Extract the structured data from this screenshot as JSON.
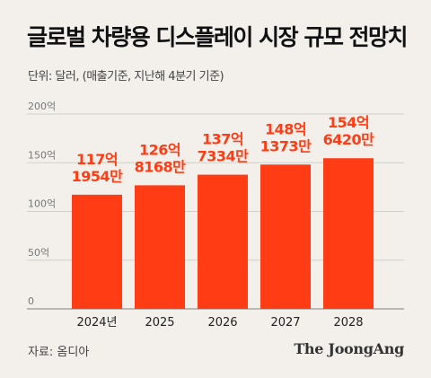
{
  "title": "글로벌 차량용 디스플레이 시장 규모 전망치",
  "unit_note": "단위: 달러, (매출기준, 지난해 4분기 기준)",
  "source": "자료: 옴디아",
  "logo": "The JoongAng",
  "colors": {
    "bar": "#ff3c14",
    "label": "#ff3c14",
    "grid": "#d2cfca",
    "background": "#f3f0eb"
  },
  "chart_data": {
    "type": "bar",
    "categories": [
      "2024년",
      "2025",
      "2026",
      "2027",
      "2028"
    ],
    "values": [
      117.1954,
      126.8168,
      137.7334,
      148.1373,
      154.642
    ],
    "data_labels": [
      [
        "117억",
        "1954만"
      ],
      [
        "126억",
        "8168만"
      ],
      [
        "137억",
        "7334만"
      ],
      [
        "148억",
        "1373만"
      ],
      [
        "154억",
        "6420만"
      ]
    ],
    "yticks": [
      0,
      50,
      100,
      150,
      200
    ],
    "ytick_labels": [
      "0",
      "50억",
      "100억",
      "150억",
      "200억"
    ],
    "ylim": [
      0,
      200
    ],
    "grid": true,
    "legend": "none"
  }
}
